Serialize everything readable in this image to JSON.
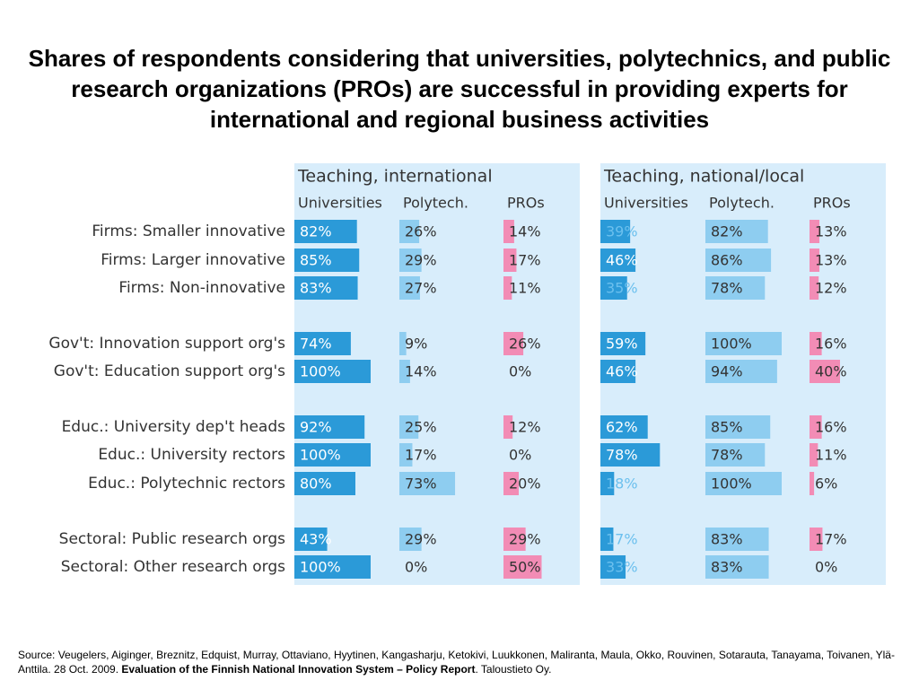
{
  "title": "Shares of respondents considering that universities, polytechnics, and public research organizations (PROs) are successful in providing experts for international and regional business activities",
  "chart_data": {
    "type": "bar",
    "xlim": [
      0,
      100
    ],
    "categories": [
      "Firms: Smaller innovative",
      "Firms: Larger innovative",
      "Firms: Non-innovative",
      "Gov't: Innovation support org's",
      "Gov't: Education support org's",
      "Educ.: University dep't heads",
      "Educ.: University rectors",
      "Educ.: Polytechnic rectors",
      "Sectoral: Public research orgs",
      "Sectoral: Other research orgs"
    ],
    "panels": [
      {
        "title": "Teaching, international",
        "series": [
          {
            "name": "Universities",
            "color": "#2b9ad8",
            "values": [
              82,
              85,
              83,
              74,
              100,
              92,
              100,
              80,
              43,
              100
            ],
            "value_labels": [
              "82%",
              "85%",
              "83%",
              "74%",
              "100%",
              "92%",
              "100%",
              "80%",
              "43%",
              "100%"
            ]
          },
          {
            "name": "Polytech.",
            "color": "#8ecdf0",
            "values": [
              26,
              29,
              27,
              9,
              14,
              25,
              17,
              73,
              29,
              0
            ],
            "value_labels": [
              "26%",
              "29%",
              "27%",
              "9%",
              "14%",
              "25%",
              "17%",
              "73%",
              "29%",
              "0%"
            ]
          },
          {
            "name": "PROs",
            "color": "#f28cb5",
            "values": [
              14,
              17,
              11,
              26,
              0,
              12,
              0,
              20,
              29,
              50
            ],
            "value_labels": [
              "14%",
              "17%",
              "11%",
              "26%",
              "0%",
              "12%",
              "0%",
              "20%",
              "29%",
              "50%"
            ]
          }
        ]
      },
      {
        "title": "Teaching, national/local",
        "series": [
          {
            "name": "Universities",
            "color": "#2b9ad8",
            "values": [
              39,
              46,
              35,
              59,
              46,
              62,
              78,
              18,
              17,
              33
            ],
            "value_labels": [
              "39%",
              "46%",
              "35%",
              "59%",
              "46%",
              "62%",
              "78%",
              "18%",
              "17%",
              "33%"
            ]
          },
          {
            "name": "Polytech.",
            "color": "#8ecdf0",
            "values": [
              82,
              86,
              78,
              100,
              94,
              85,
              78,
              100,
              83,
              83
            ],
            "value_labels": [
              "82%",
              "86%",
              "78%",
              "100%",
              "94%",
              "85%",
              "78%",
              "100%",
              "83%",
              "83%"
            ]
          },
          {
            "name": "PROs",
            "color": "#f28cb5",
            "values": [
              13,
              13,
              12,
              16,
              40,
              16,
              11,
              6,
              17,
              0
            ],
            "value_labels": [
              "13%",
              "13%",
              "12%",
              "16%",
              "40%",
              "16%",
              "11%",
              "6%",
              "17%",
              "0%"
            ]
          }
        ]
      }
    ]
  },
  "footer": {
    "source": "Source: Veugelers, Aiginger, Breznitz, Edquist, Murray, Ottaviano, Hyytinen, Kangasharju, Ketokivi, Luukkonen, Maliranta, Maula, Okko, Rouvinen, Sotarauta, Tanayama, Toivanen, Ylä-Anttila. 28 Oct. 2009.",
    "report": "Evaluation of the Finnish National Innovation System – Policy Report",
    "publisher": ". Taloustieto Oy."
  }
}
